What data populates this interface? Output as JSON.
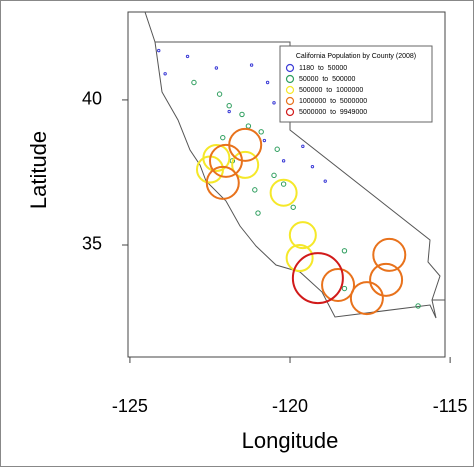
{
  "chart_data": {
    "type": "scatter",
    "xlabel": "Longitude",
    "ylabel": "Latitude",
    "xlim": [
      -125.06,
      -115.16
    ],
    "ylim": [
      31.14,
      43.03
    ],
    "xticks": [
      -125,
      -120,
      -115
    ],
    "yticks": [
      35,
      40
    ],
    "legend_title": "California Population by County (2008)",
    "legend": "upper right",
    "series": [
      {
        "name": "1180  to  50000",
        "color": "#3b3bd6",
        "x": [
          -124.1,
          -123.9,
          -123.2,
          -122.3,
          -121.2,
          -120.7,
          -120.5,
          -121.9,
          -120.8,
          -119.6,
          -120.2,
          -118.9,
          -119.3
        ],
        "values": [
          41.7,
          40.9,
          41.5,
          41.1,
          41.2,
          40.6,
          39.9,
          39.6,
          38.6,
          38.4,
          37.9,
          37.2,
          37.7
        ]
      },
      {
        "name": "50000  to  500000",
        "color": "#2e9e5e",
        "x": [
          -123.0,
          -122.2,
          -121.9,
          -121.5,
          -121.3,
          -120.9,
          -120.4,
          -122.1,
          -121.8,
          -120.5,
          -121.1,
          -120.2,
          -119.9,
          -121.0,
          -118.3,
          -118.3,
          -116.0
        ],
        "values": [
          40.6,
          40.2,
          39.8,
          39.5,
          39.1,
          38.9,
          38.3,
          38.7,
          37.9,
          37.4,
          36.9,
          37.1,
          36.3,
          36.1,
          34.8,
          33.5,
          32.9
        ]
      },
      {
        "name": "500000  to  1000000",
        "color": "#f5e829",
        "x": [
          -122.5,
          -121.4,
          -120.2,
          -119.6,
          -119.7,
          -122.3
        ],
        "values": [
          37.6,
          37.76,
          36.8,
          35.34,
          34.55,
          38.0
        ]
      },
      {
        "name": "1000000  to  5000000",
        "color": "#e8721c",
        "x": [
          -121.4,
          -122.1,
          -122.0,
          -118.5,
          -117.6,
          -116.9,
          -117.0
        ],
        "values": [
          38.45,
          37.14,
          37.9,
          33.62,
          33.17,
          34.66,
          33.8
        ]
      },
      {
        "name": "5000000  to  9949000",
        "color": "#d11a1a",
        "x": [
          -119.13
        ],
        "values": [
          33.86
        ]
      }
    ]
  }
}
